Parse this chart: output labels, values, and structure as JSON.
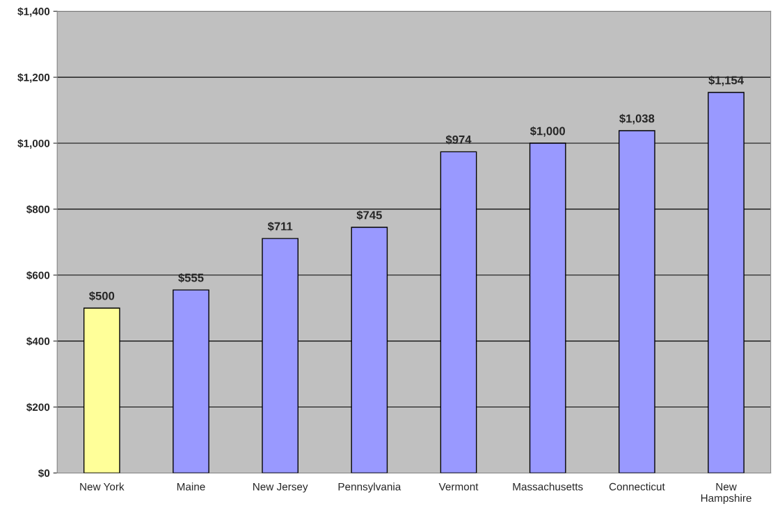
{
  "chart_data": {
    "type": "bar",
    "categories": [
      "New York",
      "Maine",
      "New Jersey",
      "Pennsylvania",
      "Vermont",
      "Massachusetts",
      "Connecticut",
      "New\nHampshire"
    ],
    "values": [
      500,
      555,
      711,
      745,
      974,
      1000,
      1038,
      1154
    ],
    "colors": [
      "#ffff99",
      "#9999ff",
      "#9999ff",
      "#9999ff",
      "#9999ff",
      "#9999ff",
      "#9999ff",
      "#9999ff"
    ],
    "value_labels": [
      "$500",
      "$555",
      "$711",
      "$745",
      "$974",
      "$1,000",
      "$1,038",
      "$1,154"
    ],
    "ylim": [
      0,
      1400
    ],
    "yticks": [
      {
        "value": 0,
        "label": "$0"
      },
      {
        "value": 200,
        "label": "$200"
      },
      {
        "value": 400,
        "label": "$400"
      },
      {
        "value": 600,
        "label": "$600"
      },
      {
        "value": 800,
        "label": "$800"
      },
      {
        "value": 1000,
        "label": "$1,000"
      },
      {
        "value": 1200,
        "label": "$1,200"
      },
      {
        "value": 1400,
        "label": "$1,400"
      }
    ],
    "grid": "y",
    "legend": false
  }
}
